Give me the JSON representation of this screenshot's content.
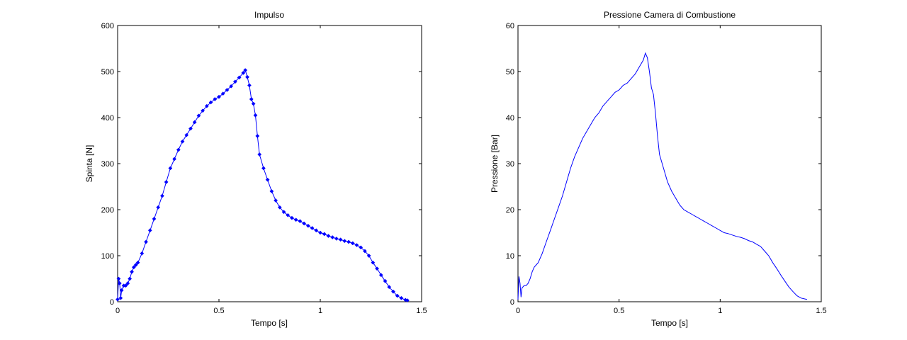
{
  "colors": {
    "line": "#0000ff",
    "axis": "#000000",
    "background": "#ffffff"
  },
  "chart_data": [
    {
      "type": "line",
      "title": "Impulso",
      "xlabel": "Tempo [s]",
      "ylabel": "Spinta [N]",
      "xlim": [
        0,
        1.5
      ],
      "ylim": [
        0,
        600
      ],
      "xticks": [
        0,
        0.5,
        1,
        1.5
      ],
      "xtick_labels": [
        "0",
        "0.5",
        "1",
        "1.5"
      ],
      "yticks": [
        0,
        100,
        200,
        300,
        400,
        500,
        600
      ],
      "ytick_labels": [
        "0",
        "100",
        "200",
        "300",
        "400",
        "500",
        "600"
      ],
      "grid": false,
      "marker": "diamond",
      "series": [
        {
          "color": "#0000ff",
          "x": [
            0,
            0.005,
            0.01,
            0.015,
            0.02,
            0.03,
            0.04,
            0.05,
            0.06,
            0.07,
            0.08,
            0.09,
            0.1,
            0.12,
            0.14,
            0.16,
            0.18,
            0.2,
            0.22,
            0.24,
            0.26,
            0.28,
            0.3,
            0.32,
            0.34,
            0.36,
            0.38,
            0.4,
            0.42,
            0.44,
            0.46,
            0.48,
            0.5,
            0.52,
            0.54,
            0.56,
            0.58,
            0.6,
            0.62,
            0.63,
            0.64,
            0.65,
            0.66,
            0.67,
            0.68,
            0.69,
            0.7,
            0.72,
            0.74,
            0.76,
            0.78,
            0.8,
            0.82,
            0.84,
            0.86,
            0.88,
            0.9,
            0.92,
            0.94,
            0.96,
            0.98,
            1.0,
            1.02,
            1.04,
            1.06,
            1.08,
            1.1,
            1.12,
            1.14,
            1.16,
            1.18,
            1.2,
            1.22,
            1.24,
            1.26,
            1.28,
            1.3,
            1.32,
            1.34,
            1.36,
            1.38,
            1.4,
            1.42,
            1.43
          ],
          "y": [
            5,
            50,
            40,
            8,
            25,
            35,
            35,
            40,
            50,
            65,
            75,
            80,
            85,
            105,
            130,
            155,
            180,
            205,
            230,
            260,
            290,
            310,
            330,
            348,
            362,
            376,
            390,
            404,
            415,
            425,
            433,
            440,
            445,
            452,
            460,
            468,
            478,
            487,
            497,
            503,
            488,
            470,
            440,
            430,
            405,
            360,
            320,
            290,
            265,
            240,
            220,
            205,
            195,
            188,
            182,
            178,
            175,
            170,
            165,
            160,
            155,
            150,
            147,
            143,
            140,
            137,
            135,
            132,
            130,
            127,
            123,
            118,
            110,
            100,
            85,
            72,
            58,
            45,
            32,
            22,
            13,
            8,
            4,
            3
          ]
        }
      ]
    },
    {
      "type": "line",
      "title": "Pressione Camera di Combustione",
      "xlabel": "Tempo [s]",
      "ylabel": "Pressione [Bar]",
      "xlim": [
        0,
        1.5
      ],
      "ylim": [
        0,
        60
      ],
      "xticks": [
        0,
        0.5,
        1,
        1.5
      ],
      "xtick_labels": [
        "0",
        "0.5",
        "1",
        "1.5"
      ],
      "yticks": [
        0,
        10,
        20,
        30,
        40,
        50,
        60
      ],
      "ytick_labels": [
        "0",
        "10",
        "20",
        "30",
        "40",
        "50",
        "60"
      ],
      "grid": false,
      "marker": "none",
      "series": [
        {
          "color": "#0000ff",
          "x": [
            0,
            0.005,
            0.01,
            0.015,
            0.02,
            0.03,
            0.04,
            0.05,
            0.06,
            0.07,
            0.08,
            0.09,
            0.1,
            0.12,
            0.14,
            0.16,
            0.18,
            0.2,
            0.22,
            0.24,
            0.26,
            0.28,
            0.3,
            0.32,
            0.34,
            0.36,
            0.38,
            0.4,
            0.42,
            0.44,
            0.46,
            0.48,
            0.5,
            0.52,
            0.54,
            0.56,
            0.58,
            0.6,
            0.62,
            0.63,
            0.64,
            0.65,
            0.66,
            0.67,
            0.68,
            0.69,
            0.7,
            0.72,
            0.74,
            0.76,
            0.78,
            0.8,
            0.82,
            0.84,
            0.86,
            0.88,
            0.9,
            0.92,
            0.94,
            0.96,
            0.98,
            1.0,
            1.02,
            1.04,
            1.06,
            1.08,
            1.1,
            1.12,
            1.14,
            1.16,
            1.18,
            1.2,
            1.22,
            1.24,
            1.26,
            1.28,
            1.3,
            1.32,
            1.34,
            1.36,
            1.38,
            1.4,
            1.42,
            1.43
          ],
          "y": [
            0.5,
            5.5,
            4,
            1,
            3,
            3.5,
            3.5,
            4,
            5,
            6.5,
            7.5,
            8,
            8.5,
            10.5,
            13,
            15.5,
            18,
            20.5,
            23,
            26,
            29,
            31.5,
            33.5,
            35.5,
            37,
            38.5,
            40,
            41,
            42.5,
            43.5,
            44.5,
            45.5,
            46,
            47,
            47.5,
            48.5,
            49.5,
            51,
            52.5,
            54,
            53,
            50,
            46.5,
            45,
            41,
            36,
            32,
            29,
            26,
            24,
            22.5,
            21,
            20,
            19.5,
            19,
            18.5,
            18,
            17.5,
            17,
            16.5,
            16,
            15.5,
            15,
            14.8,
            14.5,
            14.2,
            14,
            13.7,
            13.3,
            13,
            12.5,
            12,
            11,
            10,
            8.5,
            7.2,
            5.8,
            4.5,
            3.2,
            2.2,
            1.3,
            0.8,
            0.6,
            0.5
          ]
        }
      ]
    }
  ]
}
